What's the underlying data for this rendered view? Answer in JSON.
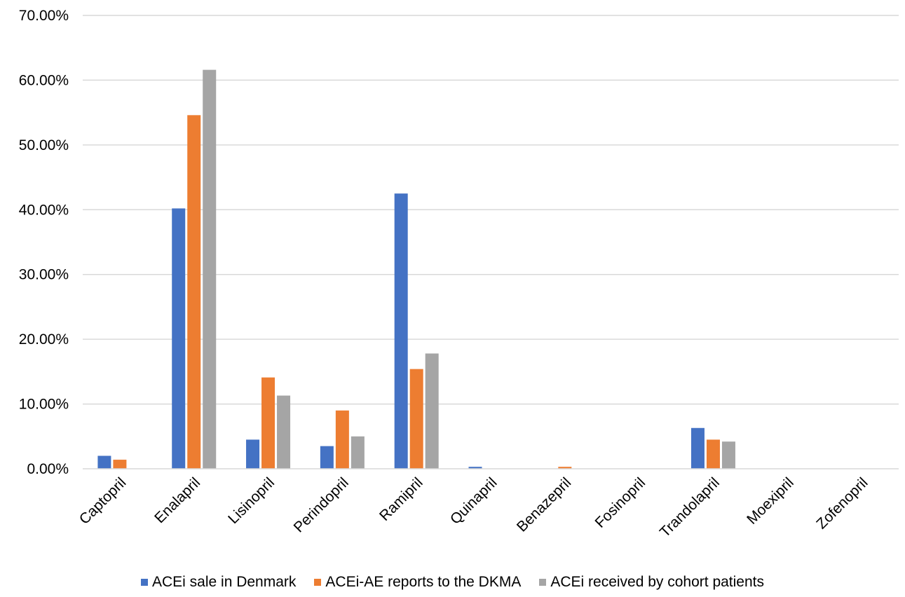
{
  "chart_data": {
    "type": "bar",
    "categories": [
      "Captopril",
      "Enalapril",
      "Lisinopril",
      "Perindopril",
      "Ramipril",
      "Quinapril",
      "Benazepril",
      "Fosinopril",
      "Trandolapril",
      "Moexipril",
      "Zofenopril"
    ],
    "series": [
      {
        "name": "ACEi sale in Denmark",
        "color": "#4472C4",
        "values": [
          2.0,
          40.2,
          4.5,
          3.5,
          42.5,
          0.3,
          0.0,
          0.0,
          6.3,
          0.0,
          0.0
        ]
      },
      {
        "name": "ACEi-AE reports to the DKMA",
        "color": "#ED7D31",
        "values": [
          1.4,
          54.6,
          14.1,
          9.0,
          15.4,
          0.0,
          0.3,
          0.0,
          4.5,
          0.0,
          0.0
        ]
      },
      {
        "name": "ACEi received by cohort patients",
        "color": "#A5A5A5",
        "values": [
          0.0,
          61.6,
          11.3,
          5.0,
          17.8,
          0.0,
          0.0,
          0.0,
          4.2,
          0.0,
          0.0
        ]
      }
    ],
    "yticks": [
      "0.00%",
      "10.00%",
      "20.00%",
      "30.00%",
      "40.00%",
      "50.00%",
      "60.00%",
      "70.00%"
    ],
    "ylim": [
      0,
      70
    ],
    "title": "",
    "xlabel": "",
    "ylabel": "",
    "grid": true,
    "legend_position": "bottom"
  }
}
